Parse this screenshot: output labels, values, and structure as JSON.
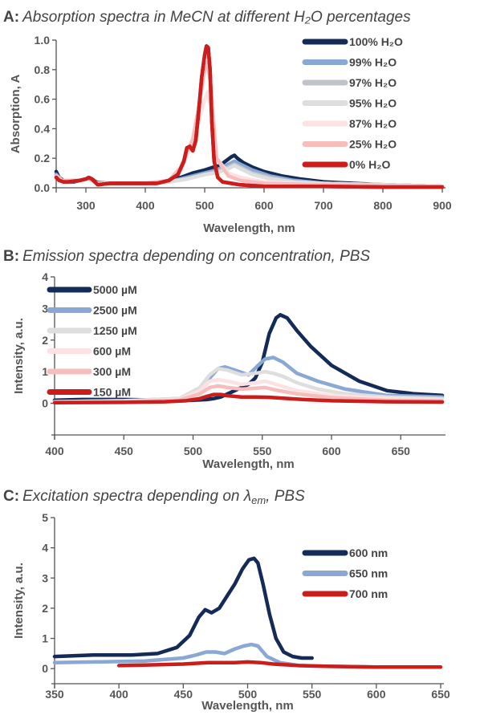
{
  "chart_data": [
    {
      "type": "line",
      "panel": "A:",
      "title": "Absorption spectra in MeCN at different H₂O percentages",
      "xlabel": "Wavelength, nm",
      "ylabel": "Absorption, A",
      "xlim": [
        250,
        900
      ],
      "ylim": [
        0,
        1.0
      ],
      "xticks": [
        300,
        400,
        500,
        600,
        700,
        800,
        900
      ],
      "yticks": [
        0.0,
        0.2,
        0.4,
        0.6,
        0.8,
        1.0
      ],
      "ytick_decimals": 1,
      "legend_position": "top-right",
      "series": [
        {
          "name": "100% H₂O",
          "color": "#142a57",
          "x": [
            250,
            255,
            262,
            270,
            280,
            290,
            300,
            305,
            310,
            315,
            320,
            340,
            370,
            400,
            420,
            440,
            460,
            480,
            500,
            515,
            525,
            535,
            545,
            550,
            555,
            565,
            580,
            600,
            630,
            660,
            700,
            750,
            800,
            850,
            900
          ],
          "y": [
            0.11,
            0.07,
            0.05,
            0.04,
            0.04,
            0.05,
            0.06,
            0.065,
            0.06,
            0.045,
            0.035,
            0.03,
            0.03,
            0.03,
            0.035,
            0.05,
            0.07,
            0.1,
            0.12,
            0.14,
            0.15,
            0.18,
            0.21,
            0.22,
            0.2,
            0.17,
            0.14,
            0.11,
            0.08,
            0.06,
            0.04,
            0.03,
            0.02,
            0.015,
            0.01
          ]
        },
        {
          "name": "99% H₂O",
          "color": "#89a8d4",
          "x": [
            250,
            260,
            270,
            290,
            305,
            320,
            350,
            400,
            440,
            470,
            500,
            520,
            540,
            550,
            560,
            580,
            610,
            650,
            700,
            800,
            900
          ],
          "y": [
            0.09,
            0.05,
            0.04,
            0.05,
            0.06,
            0.03,
            0.03,
            0.03,
            0.04,
            0.07,
            0.1,
            0.12,
            0.16,
            0.18,
            0.16,
            0.12,
            0.08,
            0.05,
            0.03,
            0.02,
            0.01
          ]
        },
        {
          "name": "97% H₂O",
          "color": "#c0c4ca",
          "x": [
            250,
            260,
            270,
            290,
            305,
            320,
            350,
            400,
            440,
            470,
            500,
            520,
            540,
            550,
            560,
            580,
            610,
            650,
            700,
            800,
            900
          ],
          "y": [
            0.08,
            0.05,
            0.04,
            0.05,
            0.06,
            0.03,
            0.03,
            0.03,
            0.04,
            0.06,
            0.09,
            0.11,
            0.14,
            0.16,
            0.14,
            0.1,
            0.07,
            0.04,
            0.03,
            0.02,
            0.01
          ]
        },
        {
          "name": "95% H₂O",
          "color": "#dedede",
          "x": [
            250,
            260,
            270,
            290,
            305,
            320,
            350,
            400,
            440,
            470,
            500,
            520,
            540,
            550,
            560,
            580,
            610,
            650,
            700,
            800,
            900
          ],
          "y": [
            0.08,
            0.05,
            0.04,
            0.05,
            0.06,
            0.03,
            0.03,
            0.03,
            0.04,
            0.06,
            0.09,
            0.1,
            0.13,
            0.15,
            0.13,
            0.09,
            0.06,
            0.04,
            0.03,
            0.02,
            0.01
          ]
        },
        {
          "name": "87% H₂O",
          "color": "#fde2e4",
          "x": [
            250,
            260,
            290,
            305,
            320,
            400,
            440,
            460,
            470,
            480,
            490,
            500,
            505,
            510,
            520,
            540,
            560,
            600,
            700,
            900
          ],
          "y": [
            0.08,
            0.05,
            0.05,
            0.06,
            0.03,
            0.03,
            0.05,
            0.12,
            0.22,
            0.3,
            0.45,
            0.6,
            0.65,
            0.55,
            0.2,
            0.1,
            0.07,
            0.04,
            0.02,
            0.01
          ]
        },
        {
          "name": "25% H₂O",
          "color": "#f7bdbd",
          "x": [
            250,
            260,
            290,
            305,
            320,
            400,
            440,
            460,
            470,
            480,
            490,
            500,
            505,
            510,
            520,
            540,
            560,
            600,
            700,
            900
          ],
          "y": [
            0.08,
            0.05,
            0.05,
            0.06,
            0.03,
            0.03,
            0.05,
            0.14,
            0.24,
            0.33,
            0.55,
            0.8,
            0.85,
            0.7,
            0.2,
            0.08,
            0.05,
            0.03,
            0.02,
            0.01
          ]
        },
        {
          "name": "0% H₂O",
          "color": "#cc1d1d",
          "x": [
            250,
            255,
            262,
            270,
            290,
            300,
            305,
            310,
            315,
            320,
            340,
            380,
            420,
            440,
            455,
            465,
            470,
            475,
            480,
            485,
            490,
            495,
            500,
            503,
            506,
            509,
            512,
            516,
            522,
            530,
            545,
            560,
            600,
            700,
            800,
            900
          ],
          "y": [
            0.07,
            0.05,
            0.04,
            0.04,
            0.05,
            0.06,
            0.07,
            0.06,
            0.04,
            0.02,
            0.03,
            0.03,
            0.03,
            0.05,
            0.09,
            0.18,
            0.27,
            0.28,
            0.25,
            0.32,
            0.52,
            0.75,
            0.9,
            0.96,
            0.95,
            0.8,
            0.45,
            0.18,
            0.07,
            0.04,
            0.03,
            0.02,
            0.01,
            0.01,
            0.005,
            0.005
          ]
        }
      ]
    },
    {
      "type": "line",
      "panel": "B:",
      "title": "Emission spectra depending on concentration, PBS",
      "xlabel": "Wavelength, nm",
      "ylabel": "Intensity, a.u.",
      "xlim": [
        400,
        680
      ],
      "ylim": [
        -1,
        4
      ],
      "xticks": [
        400,
        450,
        500,
        550,
        600,
        650
      ],
      "yticks": [
        0,
        1,
        2,
        3,
        4
      ],
      "ytick_decimals": 0,
      "legend_position": "top-left",
      "series": [
        {
          "name": "5000 µM",
          "color": "#142a57",
          "x": [
            400,
            420,
            450,
            480,
            500,
            510,
            515,
            520,
            525,
            530,
            540,
            545,
            550,
            555,
            560,
            563,
            568,
            575,
            585,
            600,
            620,
            640,
            660,
            680
          ],
          "y": [
            0.1,
            0.12,
            0.12,
            0.1,
            0.1,
            0.12,
            0.15,
            0.2,
            0.3,
            0.4,
            0.6,
            0.8,
            1.3,
            2.2,
            2.7,
            2.8,
            2.7,
            2.3,
            1.8,
            1.2,
            0.7,
            0.4,
            0.3,
            0.25
          ]
        },
        {
          "name": "2500 µM",
          "color": "#89a8d4",
          "x": [
            400,
            450,
            490,
            505,
            512,
            518,
            523,
            530,
            540,
            547,
            552,
            558,
            565,
            575,
            590,
            610,
            640,
            680
          ],
          "y": [
            0.05,
            0.08,
            0.15,
            0.4,
            0.8,
            1.1,
            1.15,
            1.05,
            0.9,
            1.2,
            1.4,
            1.45,
            1.3,
            0.95,
            0.7,
            0.45,
            0.25,
            0.2
          ]
        },
        {
          "name": "1250 µM",
          "color": "#dedede",
          "x": [
            400,
            450,
            490,
            505,
            512,
            518,
            525,
            535,
            545,
            552,
            558,
            565,
            575,
            590,
            610,
            640,
            680
          ],
          "y": [
            0.05,
            0.08,
            0.15,
            0.5,
            0.9,
            1.1,
            1.05,
            0.9,
            0.95,
            1.0,
            0.95,
            0.85,
            0.65,
            0.45,
            0.3,
            0.2,
            0.15
          ]
        },
        {
          "name": "600 µM",
          "color": "#fde2e4",
          "x": [
            400,
            450,
            490,
            505,
            512,
            518,
            525,
            535,
            545,
            552,
            560,
            575,
            600,
            640,
            680
          ],
          "y": [
            0.04,
            0.06,
            0.12,
            0.4,
            0.7,
            0.75,
            0.7,
            0.6,
            0.65,
            0.7,
            0.6,
            0.4,
            0.25,
            0.15,
            0.1
          ]
        },
        {
          "name": "300 µM",
          "color": "#f7bdbd",
          "x": [
            400,
            450,
            490,
            505,
            512,
            518,
            525,
            535,
            545,
            552,
            560,
            575,
            600,
            640,
            680
          ],
          "y": [
            0.03,
            0.05,
            0.1,
            0.3,
            0.5,
            0.55,
            0.5,
            0.45,
            0.48,
            0.5,
            0.42,
            0.3,
            0.18,
            0.1,
            0.08
          ]
        },
        {
          "name": "150 µM",
          "color": "#cc1d1d",
          "x": [
            400,
            450,
            480,
            495,
            505,
            510,
            515,
            520,
            525,
            535,
            545,
            555,
            565,
            580,
            600,
            640,
            680
          ],
          "y": [
            0.02,
            0.03,
            0.05,
            0.08,
            0.15,
            0.22,
            0.28,
            0.28,
            0.24,
            0.2,
            0.2,
            0.19,
            0.16,
            0.12,
            0.08,
            0.05,
            0.04
          ]
        }
      ]
    },
    {
      "type": "line",
      "panel": "C:",
      "title": "Excitation spectra depending on ",
      "title_symbol": "λ",
      "title_subscript": "em",
      "title_suffix": ", PBS",
      "xlabel": "Wavelength, nm",
      "ylabel": "Intensity, a.u.",
      "xlim": [
        350,
        650
      ],
      "ylim": [
        -0.5,
        5
      ],
      "xticks": [
        350,
        400,
        450,
        500,
        550,
        600,
        650
      ],
      "yticks": [
        0,
        1,
        2,
        3,
        4,
        5
      ],
      "ytick_decimals": 0,
      "legend_position": "top-right",
      "series": [
        {
          "name": "600 nm",
          "color": "#142a57",
          "x": [
            350,
            380,
            410,
            430,
            445,
            455,
            462,
            467,
            472,
            478,
            484,
            490,
            496,
            501,
            505,
            508,
            512,
            517,
            522,
            528,
            535,
            542,
            550
          ],
          "y": [
            0.4,
            0.45,
            0.45,
            0.5,
            0.7,
            1.1,
            1.7,
            1.95,
            1.85,
            2.0,
            2.4,
            2.8,
            3.3,
            3.6,
            3.65,
            3.5,
            2.8,
            1.8,
            1.0,
            0.55,
            0.4,
            0.35,
            0.35
          ]
        },
        {
          "name": "650 nm",
          "color": "#89a8d4",
          "x": [
            350,
            380,
            420,
            450,
            460,
            468,
            475,
            482,
            490,
            497,
            503,
            508,
            515,
            525,
            540,
            560,
            600
          ],
          "y": [
            0.2,
            0.22,
            0.25,
            0.35,
            0.45,
            0.55,
            0.55,
            0.5,
            0.65,
            0.75,
            0.8,
            0.75,
            0.4,
            0.2,
            0.1,
            0.08,
            0.05
          ]
        },
        {
          "name": "700 nm",
          "color": "#cc1d1d",
          "x": [
            400,
            420,
            450,
            470,
            490,
            500,
            510,
            520,
            540,
            560,
            600,
            650
          ],
          "y": [
            0.1,
            0.12,
            0.15,
            0.2,
            0.2,
            0.22,
            0.2,
            0.15,
            0.1,
            0.08,
            0.05,
            0.05
          ]
        }
      ]
    }
  ]
}
